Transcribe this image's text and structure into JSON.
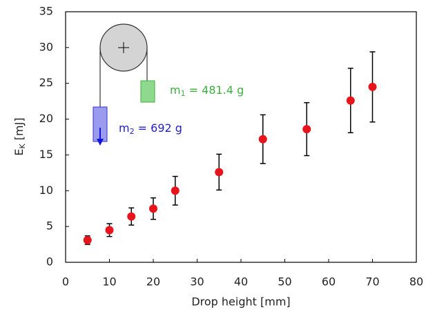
{
  "chart_data": {
    "type": "scatter",
    "xlabel": "Drop height [mm]",
    "ylabel": {
      "main": "E",
      "sub": "K",
      "rest": " [mJ]"
    },
    "x": [
      5,
      10,
      15,
      20,
      25,
      35,
      45,
      55,
      65,
      70
    ],
    "values": [
      3.1,
      4.5,
      6.4,
      7.5,
      10.0,
      12.6,
      17.2,
      18.6,
      22.6,
      24.5
    ],
    "errors": [
      0.6,
      0.9,
      1.2,
      1.5,
      2.0,
      2.5,
      3.4,
      3.7,
      4.5,
      4.9
    ],
    "color": "#e8141c",
    "xlim": [
      0,
      80
    ],
    "xticks": [
      0,
      10,
      20,
      30,
      40,
      50,
      60,
      70,
      80
    ],
    "ylim": [
      0,
      35
    ],
    "yticks": [
      0,
      5,
      10,
      15,
      20,
      25,
      30,
      35
    ],
    "annotations": [
      {
        "main": "m",
        "sub": "1",
        "rest": " = 481.4 g"
      },
      {
        "main": "m",
        "sub": "2",
        "rest": " = 692 g"
      }
    ]
  }
}
